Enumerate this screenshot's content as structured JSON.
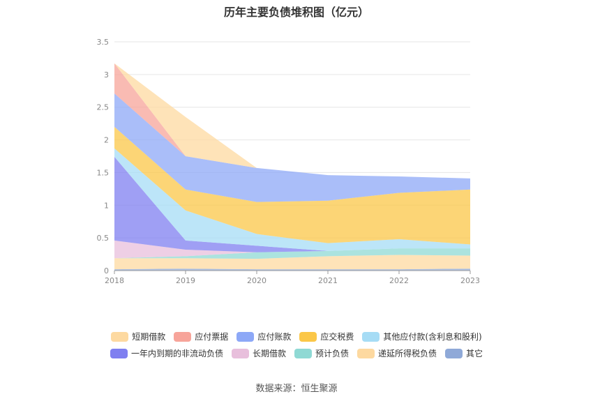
{
  "chart_data": {
    "type": "area",
    "title": "历年主要负债堆积图（亿元）",
    "categories": [
      "2018",
      "2019",
      "2020",
      "2021",
      "2022",
      "2023"
    ],
    "y_ticks": [
      "0",
      "0.5",
      "1",
      "1.5",
      "2",
      "2.5",
      "3",
      "3.5"
    ],
    "ylim": [
      0,
      3.5
    ],
    "stacked": true,
    "grid": true,
    "legend_position": "bottom",
    "series": [
      {
        "name": "其它",
        "color": "#8fa9d8",
        "values": [
          0.02,
          0.03,
          0.02,
          0.02,
          0.02,
          0.03
        ]
      },
      {
        "name": "递延所得税负债",
        "color": "#fdd9a0",
        "values": [
          0.17,
          0.16,
          0.16,
          0.2,
          0.22,
          0.2
        ]
      },
      {
        "name": "预计负债",
        "color": "#8fd9d4",
        "values": [
          0.0,
          0.03,
          0.1,
          0.08,
          0.1,
          0.11
        ]
      },
      {
        "name": "长期借款",
        "color": "#e8bfdc",
        "values": [
          0.27,
          0.1,
          0.0,
          0.0,
          0.0,
          0.0
        ]
      },
      {
        "name": "一年内到期的非流动负债",
        "color": "#7f7ff0",
        "values": [
          1.28,
          0.14,
          0.1,
          0.0,
          0.0,
          0.0
        ]
      },
      {
        "name": "其他应付款(含利息和股利)",
        "color": "#a6dcf5",
        "values": [
          0.13,
          0.46,
          0.18,
          0.12,
          0.14,
          0.06
        ]
      },
      {
        "name": "应交税费",
        "color": "#fbc748",
        "values": [
          0.33,
          0.32,
          0.49,
          0.65,
          0.71,
          0.84
        ]
      },
      {
        "name": "应付账款",
        "color": "#8da8f7",
        "values": [
          0.51,
          0.51,
          0.52,
          0.39,
          0.25,
          0.17
        ]
      },
      {
        "name": "应付票据",
        "color": "#f7a49a",
        "values": [
          0.46,
          0.0,
          0.0,
          0.0,
          0.0,
          0.0
        ]
      },
      {
        "name": "短期借款",
        "color": "#fdd9a0",
        "values": [
          0.0,
          0.6,
          0.0,
          0.0,
          0.0,
          0.0
        ]
      }
    ],
    "legend_order": [
      "短期借款",
      "应付票据",
      "应付账款",
      "应交税费",
      "其他应付款(含利息和股利)",
      "一年内到期的非流动负债",
      "长期借款",
      "预计负债",
      "递延所得税负债",
      "其它"
    ]
  },
  "source": "数据来源：恒生聚源"
}
